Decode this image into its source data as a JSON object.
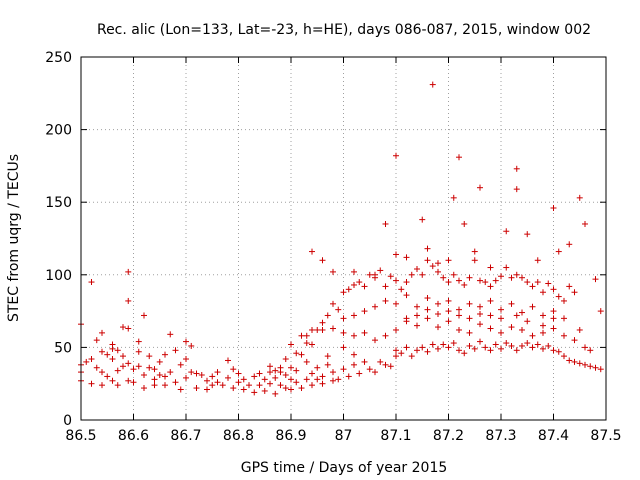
{
  "chart_data": {
    "type": "scatter",
    "title": "Rec. alic (Lon=133, Lat=-23, h=HE), days 086-087, 2015, window 002",
    "xlabel": "GPS time / Days of year 2015",
    "ylabel": "STEC from uqrg / TECUs",
    "xlim": [
      86.5,
      87.5
    ],
    "ylim": [
      0,
      250
    ],
    "x_ticks": [
      "86.5",
      "86.6",
      "86.7",
      "86.8",
      "86.9",
      "87",
      "87.1",
      "87.2",
      "87.3",
      "87.4",
      "87.5"
    ],
    "y_ticks": [
      "0",
      "50",
      "100",
      "150",
      "200",
      "250"
    ],
    "grid": true,
    "marker": "+",
    "series_color": "#cc0000",
    "points": [
      [
        86.5,
        66
      ],
      [
        86.5,
        38
      ],
      [
        86.5,
        33
      ],
      [
        86.5,
        27
      ],
      [
        86.51,
        40
      ],
      [
        86.52,
        95
      ],
      [
        86.52,
        42
      ],
      [
        86.52,
        25
      ],
      [
        86.53,
        55
      ],
      [
        86.53,
        36
      ],
      [
        86.54,
        60
      ],
      [
        86.54,
        47
      ],
      [
        86.54,
        33
      ],
      [
        86.54,
        24
      ],
      [
        86.55,
        45
      ],
      [
        86.55,
        30
      ],
      [
        86.56,
        52
      ],
      [
        86.56,
        49
      ],
      [
        86.56,
        42
      ],
      [
        86.56,
        27
      ],
      [
        86.57,
        48
      ],
      [
        86.57,
        34
      ],
      [
        86.57,
        24
      ],
      [
        86.58,
        64
      ],
      [
        86.58,
        44
      ],
      [
        86.58,
        37
      ],
      [
        86.59,
        102
      ],
      [
        86.59,
        82
      ],
      [
        86.59,
        63
      ],
      [
        86.59,
        39
      ],
      [
        86.59,
        27
      ],
      [
        86.6,
        35
      ],
      [
        86.6,
        26
      ],
      [
        86.61,
        54
      ],
      [
        86.61,
        47
      ],
      [
        86.61,
        37
      ],
      [
        86.62,
        72
      ],
      [
        86.62,
        31
      ],
      [
        86.62,
        22
      ],
      [
        86.63,
        44
      ],
      [
        86.63,
        36
      ],
      [
        86.64,
        35
      ],
      [
        86.64,
        28
      ],
      [
        86.64,
        24
      ],
      [
        86.65,
        40
      ],
      [
        86.65,
        31
      ],
      [
        86.66,
        45
      ],
      [
        86.66,
        30
      ],
      [
        86.66,
        24
      ],
      [
        86.67,
        59
      ],
      [
        86.67,
        33
      ],
      [
        86.68,
        48
      ],
      [
        86.68,
        26
      ],
      [
        86.69,
        38
      ],
      [
        86.69,
        21
      ],
      [
        86.7,
        54
      ],
      [
        86.7,
        42
      ],
      [
        86.7,
        29
      ],
      [
        86.71,
        51
      ],
      [
        86.71,
        33
      ],
      [
        86.72,
        32
      ],
      [
        86.72,
        22
      ],
      [
        86.73,
        31
      ],
      [
        86.74,
        27
      ],
      [
        86.74,
        21
      ],
      [
        86.75,
        30
      ],
      [
        86.75,
        24
      ],
      [
        86.76,
        33
      ],
      [
        86.76,
        26
      ],
      [
        86.77,
        24
      ],
      [
        86.78,
        41
      ],
      [
        86.78,
        29
      ],
      [
        86.79,
        35
      ],
      [
        86.79,
        22
      ],
      [
        86.8,
        32
      ],
      [
        86.8,
        26
      ],
      [
        86.81,
        28
      ],
      [
        86.81,
        21
      ],
      [
        86.82,
        24
      ],
      [
        86.83,
        30
      ],
      [
        86.83,
        19
      ],
      [
        86.84,
        32
      ],
      [
        86.84,
        24
      ],
      [
        86.85,
        28
      ],
      [
        86.85,
        20
      ],
      [
        86.86,
        33
      ],
      [
        86.86,
        25
      ],
      [
        86.87,
        29
      ],
      [
        86.87,
        18
      ],
      [
        86.88,
        36
      ],
      [
        86.88,
        24
      ],
      [
        86.89,
        31
      ],
      [
        86.89,
        22
      ],
      [
        86.9,
        28
      ],
      [
        86.9,
        21
      ],
      [
        86.91,
        34
      ],
      [
        86.91,
        26
      ],
      [
        86.92,
        22
      ],
      [
        86.93,
        40
      ],
      [
        86.93,
        28
      ],
      [
        86.94,
        32
      ],
      [
        86.94,
        24
      ],
      [
        86.95,
        36
      ],
      [
        86.95,
        28
      ],
      [
        86.96,
        30
      ],
      [
        86.96,
        25
      ],
      [
        86.97,
        44
      ],
      [
        86.97,
        38
      ],
      [
        86.98,
        33
      ],
      [
        86.98,
        27
      ],
      [
        86.99,
        28
      ],
      [
        87.0,
        50
      ],
      [
        87.0,
        35
      ],
      [
        87.01,
        30
      ],
      [
        87.02,
        45
      ],
      [
        87.02,
        38
      ],
      [
        87.03,
        32
      ],
      [
        87.04,
        40
      ],
      [
        87.05,
        35
      ],
      [
        87.06,
        33
      ],
      [
        87.07,
        40
      ],
      [
        87.08,
        38
      ],
      [
        87.09,
        37
      ],
      [
        87.1,
        48
      ],
      [
        87.1,
        44
      ],
      [
        87.11,
        46
      ],
      [
        87.12,
        50
      ],
      [
        87.13,
        44
      ],
      [
        87.14,
        48
      ],
      [
        87.15,
        50
      ],
      [
        87.16,
        47
      ],
      [
        87.17,
        52
      ],
      [
        87.18,
        49
      ],
      [
        87.19,
        52
      ],
      [
        87.2,
        50
      ],
      [
        87.21,
        53
      ],
      [
        87.22,
        48
      ],
      [
        87.23,
        46
      ],
      [
        87.24,
        51
      ],
      [
        87.25,
        49
      ],
      [
        87.26,
        54
      ],
      [
        87.27,
        50
      ],
      [
        87.28,
        48
      ],
      [
        87.29,
        52
      ],
      [
        87.3,
        49
      ],
      [
        87.31,
        53
      ],
      [
        87.32,
        51
      ],
      [
        87.33,
        48
      ],
      [
        87.34,
        51
      ],
      [
        87.35,
        53
      ],
      [
        87.36,
        50
      ],
      [
        87.37,
        52
      ],
      [
        87.38,
        49
      ],
      [
        87.39,
        51
      ],
      [
        87.4,
        48
      ],
      [
        87.41,
        47
      ],
      [
        87.42,
        44
      ],
      [
        87.43,
        41
      ],
      [
        87.44,
        40
      ],
      [
        87.45,
        39
      ],
      [
        87.46,
        38
      ],
      [
        87.47,
        37
      ],
      [
        87.48,
        36
      ],
      [
        87.49,
        35
      ],
      [
        86.86,
        37
      ],
      [
        86.87,
        34
      ],
      [
        86.88,
        33
      ],
      [
        86.89,
        42
      ],
      [
        86.9,
        36
      ],
      [
        86.91,
        46
      ],
      [
        86.92,
        45
      ],
      [
        86.93,
        53
      ],
      [
        86.93,
        58
      ],
      [
        86.94,
        62
      ],
      [
        86.95,
        62
      ],
      [
        86.96,
        67
      ],
      [
        86.97,
        72
      ],
      [
        86.98,
        80
      ],
      [
        86.99,
        76
      ],
      [
        87.0,
        88
      ],
      [
        87.01,
        90
      ],
      [
        87.02,
        93
      ],
      [
        87.03,
        95
      ],
      [
        87.04,
        92
      ],
      [
        87.05,
        100
      ],
      [
        87.06,
        98
      ],
      [
        87.07,
        103
      ],
      [
        87.08,
        92
      ],
      [
        87.09,
        99
      ],
      [
        87.1,
        96
      ],
      [
        87.11,
        90
      ],
      [
        87.12,
        95
      ],
      [
        87.13,
        100
      ],
      [
        87.14,
        104
      ],
      [
        87.15,
        100
      ],
      [
        87.16,
        110
      ],
      [
        87.17,
        106
      ],
      [
        87.18,
        102
      ],
      [
        87.19,
        98
      ],
      [
        87.2,
        95
      ],
      [
        87.21,
        100
      ],
      [
        87.22,
        96
      ],
      [
        87.23,
        93
      ],
      [
        87.24,
        98
      ],
      [
        87.25,
        110
      ],
      [
        87.26,
        96
      ],
      [
        87.27,
        95
      ],
      [
        87.28,
        92
      ],
      [
        87.29,
        96
      ],
      [
        87.3,
        99
      ],
      [
        87.31,
        105
      ],
      [
        87.32,
        98
      ],
      [
        87.33,
        100
      ],
      [
        87.34,
        98
      ],
      [
        87.35,
        95
      ],
      [
        87.36,
        92
      ],
      [
        87.37,
        95
      ],
      [
        87.38,
        88
      ],
      [
        87.39,
        94
      ],
      [
        87.4,
        90
      ],
      [
        87.41,
        85
      ],
      [
        87.42,
        82
      ],
      [
        87.43,
        92
      ],
      [
        87.44,
        88
      ],
      [
        86.9,
        52
      ],
      [
        86.92,
        58
      ],
      [
        86.94,
        52
      ],
      [
        86.96,
        62
      ],
      [
        86.98,
        63
      ],
      [
        87.0,
        60
      ],
      [
        87.02,
        58
      ],
      [
        87.04,
        60
      ],
      [
        87.06,
        55
      ],
      [
        87.08,
        58
      ],
      [
        87.1,
        62
      ],
      [
        87.12,
        68
      ],
      [
        87.14,
        65
      ],
      [
        87.16,
        70
      ],
      [
        87.18,
        64
      ],
      [
        87.2,
        68
      ],
      [
        87.22,
        62
      ],
      [
        87.24,
        60
      ],
      [
        87.26,
        66
      ],
      [
        87.28,
        63
      ],
      [
        87.3,
        60
      ],
      [
        87.32,
        64
      ],
      [
        87.34,
        62
      ],
      [
        87.36,
        58
      ],
      [
        87.38,
        60
      ],
      [
        87.4,
        63
      ],
      [
        87.42,
        58
      ],
      [
        87.44,
        55
      ],
      [
        87.46,
        50
      ],
      [
        87.0,
        70
      ],
      [
        87.02,
        72
      ],
      [
        87.04,
        75
      ],
      [
        87.06,
        78
      ],
      [
        87.08,
        82
      ],
      [
        87.1,
        80
      ],
      [
        87.12,
        86
      ],
      [
        87.14,
        78
      ],
      [
        87.16,
        84
      ],
      [
        87.18,
        80
      ],
      [
        87.2,
        82
      ],
      [
        87.22,
        76
      ],
      [
        87.24,
        80
      ],
      [
        87.26,
        78
      ],
      [
        87.28,
        82
      ],
      [
        87.3,
        76
      ],
      [
        87.32,
        80
      ],
      [
        87.34,
        74
      ],
      [
        87.36,
        78
      ],
      [
        87.38,
        72
      ],
      [
        87.4,
        75
      ],
      [
        87.42,
        70
      ],
      [
        86.94,
        116
      ],
      [
        86.96,
        110
      ],
      [
        86.98,
        102
      ],
      [
        87.02,
        102
      ],
      [
        87.06,
        100
      ],
      [
        87.08,
        135
      ],
      [
        87.1,
        182
      ],
      [
        87.1,
        114
      ],
      [
        87.12,
        112
      ],
      [
        87.15,
        138
      ],
      [
        87.16,
        118
      ],
      [
        87.17,
        231
      ],
      [
        87.18,
        108
      ],
      [
        87.2,
        110
      ],
      [
        87.21,
        153
      ],
      [
        87.22,
        181
      ],
      [
        87.23,
        135
      ],
      [
        87.25,
        116
      ],
      [
        87.26,
        160
      ],
      [
        87.28,
        105
      ],
      [
        87.31,
        130
      ],
      [
        87.33,
        173
      ],
      [
        87.33,
        159
      ],
      [
        87.35,
        128
      ],
      [
        87.37,
        110
      ],
      [
        87.4,
        146
      ],
      [
        87.41,
        116
      ],
      [
        87.43,
        121
      ],
      [
        87.45,
        153
      ],
      [
        87.46,
        135
      ],
      [
        87.48,
        97
      ],
      [
        87.49,
        75
      ],
      [
        87.45,
        62
      ],
      [
        87.47,
        48
      ],
      [
        87.4,
        70
      ],
      [
        87.38,
        65
      ],
      [
        87.35,
        68
      ],
      [
        87.33,
        72
      ],
      [
        87.3,
        70
      ],
      [
        87.28,
        72
      ],
      [
        87.26,
        73
      ],
      [
        87.24,
        70
      ],
      [
        87.22,
        72
      ],
      [
        87.2,
        75
      ],
      [
        87.18,
        73
      ],
      [
        87.16,
        76
      ],
      [
        87.14,
        72
      ],
      [
        87.12,
        70
      ]
    ]
  }
}
